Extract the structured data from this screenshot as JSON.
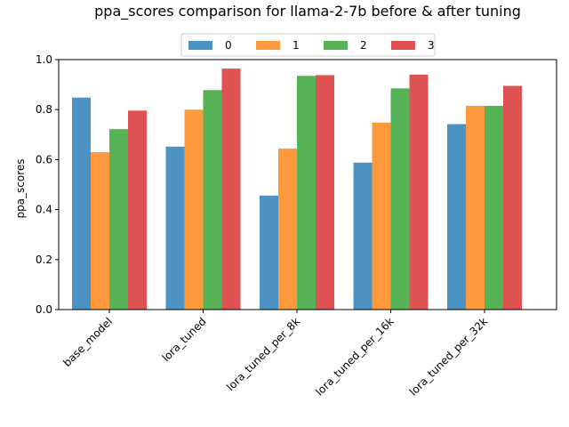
{
  "chart_data": {
    "type": "bar",
    "title": "ppa_scores comparison for llama-2-7b before & after tuning",
    "xlabel": "",
    "ylabel": "ppa_scores",
    "ylim": [
      0,
      1.0
    ],
    "yticks": [
      0.0,
      0.2,
      0.4,
      0.6,
      0.8,
      1.0
    ],
    "ytick_labels": [
      "0.0",
      "0.2",
      "0.4",
      "0.6",
      "0.8",
      "1.0"
    ],
    "grid": false,
    "legend": "top-center",
    "categories": [
      "base_model",
      "lora_tuned",
      "lora_tuned_per_8k",
      "lora_tuned_per_16k",
      "lora_tuned_per_32k"
    ],
    "series": [
      {
        "name": "0",
        "color": "#1f77b4",
        "values": [
          0.848,
          0.652,
          0.456,
          0.588,
          0.742
        ]
      },
      {
        "name": "1",
        "color": "#ff7f0e",
        "values": [
          0.63,
          0.8,
          0.644,
          0.748,
          0.815
        ]
      },
      {
        "name": "2",
        "color": "#2ca02c",
        "values": [
          0.722,
          0.878,
          0.935,
          0.885,
          0.815
        ]
      },
      {
        "name": "3",
        "color": "#d62728",
        "values": [
          0.796,
          0.964,
          0.938,
          0.94,
          0.895
        ]
      }
    ]
  }
}
